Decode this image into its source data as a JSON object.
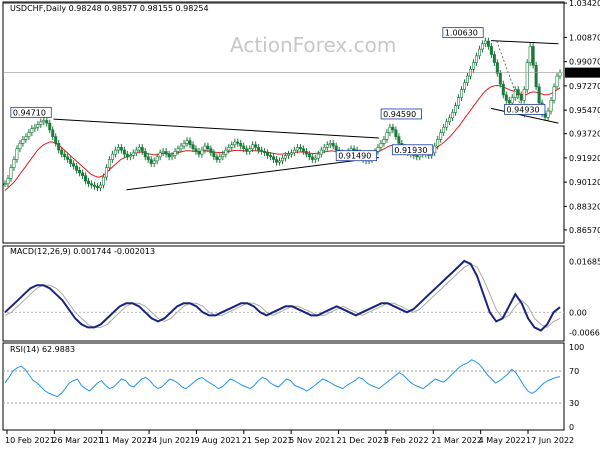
{
  "chart_data": [
    {
      "type": "candlestick",
      "header": "USDCHF,Daily  0.98248  0.98577  0.98155  0.98254",
      "watermark": "ActionForex.com",
      "ylim": [
        0.856,
        1.035
      ],
      "y_ticks": [
        "1.03420",
        "1.00870",
        "0.99070",
        "0.97270",
        "0.95470",
        "0.93720",
        "0.91920",
        "0.90120",
        "0.88320",
        "0.86570"
      ],
      "y_tick_values": [
        1.0342,
        1.0087,
        0.9907,
        0.9727,
        0.9547,
        0.9372,
        0.9192,
        0.9012,
        0.8832,
        0.8657
      ],
      "horizontal_line": 1.0342,
      "current_price": {
        "label": "0.98254",
        "value": 0.98254
      },
      "current_line": 0.9825,
      "x_ticks": [
        "10 Feb 2021",
        "26 Mar 2021",
        "11 May 2021",
        "24 Jun 2021",
        "9 Aug 2021",
        "21 Sep 2021",
        "5 Nov 2021",
        "21 Dec 2021",
        "3 Feb 2022",
        "21 Mar 2022",
        "4 May 2022",
        "17 Jun 2022"
      ],
      "annotations": [
        {
          "label": "0.94710",
          "value": 0.9471,
          "x": 0.05
        },
        {
          "label": "0.91490",
          "value": 0.9149,
          "x": 0.63
        },
        {
          "label": "0.94590",
          "value": 0.9459,
          "x": 0.71
        },
        {
          "label": "0.91930",
          "value": 0.9193,
          "x": 0.73
        },
        {
          "label": "1.00630",
          "value": 1.0063,
          "x": 0.82
        },
        {
          "label": "0.94930",
          "value": 0.9493,
          "x": 0.93
        }
      ],
      "trendlines": [
        {
          "from": [
            0.22,
            0.8955
          ],
          "to": [
            0.67,
            0.9195
          ]
        },
        {
          "from": [
            0.09,
            0.948
          ],
          "to": [
            0.67,
            0.934
          ]
        },
        {
          "from": [
            0.87,
            1.0063
          ],
          "to": [
            0.99,
            1.004
          ]
        },
        {
          "from": [
            0.87,
            0.956
          ],
          "to": [
            0.99,
            0.945
          ]
        }
      ],
      "close_series": [
        0.9,
        0.904,
        0.912,
        0.918,
        0.926,
        0.93,
        0.933,
        0.935,
        0.938,
        0.941,
        0.942,
        0.944,
        0.946,
        0.947,
        0.945,
        0.94,
        0.935,
        0.93,
        0.925,
        0.922,
        0.92,
        0.918,
        0.915,
        0.913,
        0.91,
        0.908,
        0.906,
        0.902,
        0.9,
        0.899,
        0.898,
        0.897,
        0.899,
        0.905,
        0.912,
        0.918,
        0.922,
        0.925,
        0.927,
        0.925,
        0.922,
        0.92,
        0.921,
        0.923,
        0.925,
        0.927,
        0.924,
        0.92,
        0.918,
        0.915,
        0.917,
        0.92,
        0.923,
        0.924,
        0.922,
        0.92,
        0.921,
        0.924,
        0.926,
        0.928,
        0.93,
        0.932,
        0.929,
        0.926,
        0.924,
        0.922,
        0.925,
        0.928,
        0.926,
        0.923,
        0.92,
        0.918,
        0.92,
        0.922,
        0.925,
        0.927,
        0.929,
        0.931,
        0.93,
        0.928,
        0.926,
        0.924,
        0.926,
        0.929,
        0.927,
        0.925,
        0.924,
        0.923,
        0.921,
        0.92,
        0.918,
        0.916,
        0.917,
        0.919,
        0.921,
        0.922,
        0.923,
        0.925,
        0.927,
        0.926,
        0.924,
        0.922,
        0.92,
        0.918,
        0.919,
        0.922,
        0.925,
        0.927,
        0.929,
        0.93,
        0.928,
        0.925,
        0.923,
        0.921,
        0.922,
        0.924,
        0.926,
        0.925,
        0.923,
        0.92,
        0.918,
        0.917,
        0.918,
        0.921,
        0.924,
        0.927,
        0.93,
        0.933,
        0.938,
        0.942,
        0.94,
        0.935,
        0.93,
        0.927,
        0.925,
        0.923,
        0.922,
        0.921,
        0.92,
        0.922,
        0.924,
        0.922,
        0.921,
        0.923,
        0.928,
        0.933,
        0.938,
        0.942,
        0.946,
        0.949,
        0.953,
        0.958,
        0.964,
        0.97,
        0.975,
        0.98,
        0.985,
        0.99,
        0.995,
        1.0,
        1.004,
        1.006,
        1.002,
        0.996,
        0.99,
        0.982,
        0.974,
        0.966,
        0.962,
        0.96,
        0.964,
        0.97,
        0.966,
        0.962,
        0.97,
        0.99,
        1.002,
        0.988,
        0.972,
        0.96,
        0.952,
        0.9493,
        0.954,
        0.962,
        0.972,
        0.98,
        0.9825
      ],
      "ma_series": [
        0.895,
        0.897,
        0.899,
        0.901,
        0.904,
        0.907,
        0.91,
        0.913,
        0.916,
        0.919,
        0.922,
        0.925,
        0.927,
        0.929,
        0.93,
        0.931,
        0.931,
        0.93,
        0.929,
        0.927,
        0.925,
        0.923,
        0.921,
        0.919,
        0.917,
        0.915,
        0.913,
        0.911,
        0.909,
        0.907,
        0.906,
        0.905,
        0.905,
        0.906,
        0.908,
        0.91,
        0.912,
        0.914,
        0.916,
        0.918,
        0.919,
        0.92,
        0.921,
        0.922,
        0.923,
        0.9235,
        0.9235,
        0.923,
        0.9225,
        0.922,
        0.9215,
        0.9215,
        0.922,
        0.9225,
        0.9225,
        0.9222,
        0.9222,
        0.9225,
        0.923,
        0.9235,
        0.924,
        0.9245,
        0.9245,
        0.9243,
        0.924,
        0.9238,
        0.924,
        0.9243,
        0.9244,
        0.9242,
        0.9238,
        0.9234,
        0.9232,
        0.9232,
        0.9234,
        0.9238,
        0.9242,
        0.9246,
        0.9248,
        0.9248,
        0.9246,
        0.9244,
        0.9244,
        0.9246,
        0.9246,
        0.9244,
        0.9242,
        0.924,
        0.9236,
        0.9232,
        0.9228,
        0.9224,
        0.922,
        0.922,
        0.9222,
        0.9224,
        0.9226,
        0.923,
        0.9234,
        0.9236,
        0.9236,
        0.9234,
        0.923,
        0.9226,
        0.9224,
        0.9226,
        0.923,
        0.9234,
        0.9238,
        0.9242,
        0.9244,
        0.9242,
        0.924,
        0.9236,
        0.9234,
        0.9234,
        0.9236,
        0.9236,
        0.9234,
        0.923,
        0.9226,
        0.9222,
        0.922,
        0.9222,
        0.9226,
        0.9232,
        0.924,
        0.925,
        0.9262,
        0.9276,
        0.9284,
        0.9286,
        0.9284,
        0.928,
        0.9276,
        0.927,
        0.9264,
        0.9258,
        0.9252,
        0.925,
        0.925,
        0.9248,
        0.9246,
        0.9246,
        0.9252,
        0.9262,
        0.9276,
        0.9292,
        0.931,
        0.933,
        0.9352,
        0.9376,
        0.9402,
        0.943,
        0.946,
        0.949,
        0.952,
        0.955,
        0.958,
        0.961,
        0.964,
        0.9668,
        0.9692,
        0.971,
        0.9722,
        0.9728,
        0.973,
        0.9726,
        0.9718,
        0.9708,
        0.9698,
        0.969,
        0.9682,
        0.9672,
        0.9664,
        0.966,
        0.9666,
        0.9678,
        0.9682,
        0.968,
        0.9674,
        0.9666,
        0.966,
        0.9662,
        0.967,
        0.9682,
        0.9698,
        0.9712
      ]
    },
    {
      "type": "line",
      "label": "MACD(12,26,9)  0.001744  -0.002013",
      "ylim": [
        -0.0085,
        0.018
      ],
      "y_ticks": [
        "0.016856",
        "0.00",
        "-0.006629"
      ],
      "y_tick_values": [
        0.016856,
        0.0,
        -0.006629
      ],
      "macd_line": [
        0.0,
        0.002,
        0.004,
        0.006,
        0.008,
        0.009,
        0.009,
        0.008,
        0.006,
        0.004,
        0.001,
        -0.002,
        -0.004,
        -0.005,
        -0.005,
        -0.004,
        -0.002,
        0.0,
        0.002,
        0.003,
        0.003,
        0.002,
        0.0,
        -0.002,
        -0.003,
        -0.002,
        0.0,
        0.002,
        0.003,
        0.003,
        0.002,
        0.0,
        -0.001,
        -0.001,
        0.0,
        0.001,
        0.002,
        0.003,
        0.003,
        0.002,
        0.0,
        -0.001,
        0.0,
        0.001,
        0.002,
        0.002,
        0.001,
        0.0,
        -0.001,
        -0.001,
        0.0,
        0.001,
        0.002,
        0.001,
        0.0,
        -0.001,
        0.0,
        0.001,
        0.002,
        0.003,
        0.003,
        0.002,
        0.001,
        0.0,
        0.001,
        0.003,
        0.005,
        0.007,
        0.009,
        0.011,
        0.013,
        0.015,
        0.017,
        0.016,
        0.012,
        0.006,
        0.0,
        -0.003,
        -0.002,
        0.002,
        0.006,
        0.003,
        -0.002,
        -0.005,
        -0.006,
        -0.004,
        0.0,
        0.0017
      ],
      "signal_line": [
        -0.001,
        0.0,
        0.002,
        0.004,
        0.006,
        0.008,
        0.009,
        0.009,
        0.008,
        0.006,
        0.003,
        0.0,
        -0.002,
        -0.004,
        -0.005,
        -0.005,
        -0.004,
        -0.002,
        0.0,
        0.002,
        0.003,
        0.003,
        0.002,
        0.0,
        -0.002,
        -0.003,
        -0.002,
        0.0,
        0.002,
        0.003,
        0.003,
        0.002,
        0.0,
        -0.001,
        -0.001,
        0.0,
        0.001,
        0.002,
        0.003,
        0.003,
        0.002,
        0.0,
        -0.001,
        0.0,
        0.001,
        0.002,
        0.002,
        0.001,
        0.0,
        -0.001,
        -0.001,
        0.0,
        0.001,
        0.002,
        0.001,
        0.0,
        -0.001,
        0.0,
        0.001,
        0.002,
        0.003,
        0.003,
        0.002,
        0.001,
        0.0,
        0.001,
        0.003,
        0.005,
        0.007,
        0.009,
        0.011,
        0.013,
        0.015,
        0.016,
        0.015,
        0.011,
        0.006,
        0.001,
        -0.002,
        -0.001,
        0.002,
        0.004,
        0.002,
        -0.002,
        -0.004,
        -0.005,
        -0.003,
        -0.002
      ]
    },
    {
      "type": "line",
      "label": "RSI(14)  62.9883",
      "ylim": [
        0,
        100
      ],
      "y_ticks": [
        "100",
        "70",
        "30",
        "0"
      ],
      "y_tick_values": [
        100,
        70,
        30,
        0
      ],
      "levels": [
        70,
        30
      ],
      "rsi_line": [
        55,
        62,
        70,
        74,
        76,
        72,
        65,
        58,
        55,
        50,
        45,
        42,
        40,
        38,
        42,
        48,
        55,
        58,
        60,
        52,
        48,
        45,
        50,
        55,
        58,
        52,
        48,
        50,
        55,
        60,
        58,
        52,
        50,
        55,
        60,
        62,
        58,
        52,
        48,
        50,
        55,
        60,
        58,
        55,
        50,
        48,
        52,
        56,
        60,
        62,
        58,
        55,
        52,
        48,
        50,
        55,
        60,
        58,
        55,
        52,
        50,
        48,
        52,
        58,
        62,
        60,
        55,
        52,
        50,
        55,
        60,
        58,
        52,
        50,
        48,
        45,
        48,
        52,
        56,
        60,
        58,
        55,
        52,
        50,
        48,
        52,
        55,
        58,
        62,
        60,
        55,
        52,
        50,
        48,
        52,
        56,
        60,
        64,
        68,
        65,
        60,
        55,
        52,
        50,
        48,
        52,
        56,
        60,
        58,
        56,
        60,
        65,
        70,
        75,
        78,
        80,
        84,
        82,
        78,
        72,
        65,
        60,
        55,
        58,
        62,
        66,
        72,
        68,
        60,
        52,
        45,
        42,
        45,
        50,
        55,
        58,
        60,
        62,
        63
      ]
    }
  ]
}
